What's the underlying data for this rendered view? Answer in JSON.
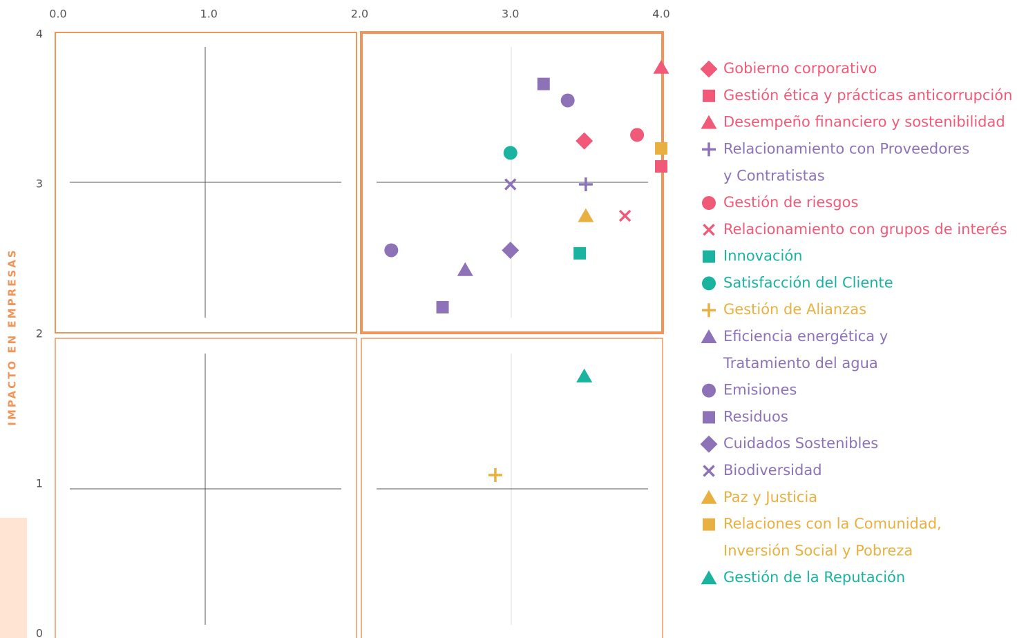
{
  "chart_data": {
    "type": "scatter",
    "ylabel": "IMPACTO EN EMPRESAS",
    "xlim": [
      0,
      4
    ],
    "ylim": [
      0,
      4
    ],
    "xticks": [
      {
        "value": 0,
        "label": "0.0"
      },
      {
        "value": 1,
        "label": "1.0"
      },
      {
        "value": 2,
        "label": "2.0"
      },
      {
        "value": 3,
        "label": "3.0"
      },
      {
        "value": 4,
        "label": "4.0"
      }
    ],
    "yticks": [
      0,
      1,
      2,
      3,
      4
    ],
    "series": [
      {
        "name": "Gobierno corporativo",
        "color": "#f05a78",
        "marker": "diamond",
        "x": [
          3.49
        ],
        "values": [
          3.29
        ]
      },
      {
        "name": "Gestión ética y prácticas anticorrupción",
        "color": "#f05a78",
        "marker": "square",
        "x": [
          4.0
        ],
        "values": [
          3.12
        ]
      },
      {
        "name": "Desempeño financiero y sostenibilidad",
        "color": "#f05a78",
        "marker": "triangle",
        "x": [
          4.0
        ],
        "values": [
          3.78
        ]
      },
      {
        "name": "Relacionamiento con Proveedores\ny Contratistas",
        "color": "#8e72b8",
        "marker": "plus",
        "x": [
          3.5
        ],
        "values": [
          3.0
        ]
      },
      {
        "name": "Gestión de riesgos",
        "color": "#f05a78",
        "marker": "circle",
        "x": [
          3.84
        ],
        "values": [
          3.33
        ]
      },
      {
        "name": "Relacionamiento con grupos de interés",
        "color": "#f05a78",
        "marker": "x",
        "x": [
          3.76
        ],
        "values": [
          2.79
        ]
      },
      {
        "name": "Innovación",
        "color": "#19b3a0",
        "marker": "square",
        "x": [
          3.46
        ],
        "values": [
          2.54
        ]
      },
      {
        "name": "Satisfacción del Cliente",
        "color": "#19b3a0",
        "marker": "circle",
        "x": [
          3.0
        ],
        "values": [
          3.21
        ]
      },
      {
        "name": "Gestión de Alianzas",
        "color": "#e8b040",
        "marker": "plus",
        "x": [
          2.9
        ],
        "values": [
          1.06
        ]
      },
      {
        "name": "Eficiencia energética y\nTratamiento del agua",
        "color": "#8e72b8",
        "marker": "triangle",
        "x": [
          2.7
        ],
        "values": [
          2.43
        ]
      },
      {
        "name": "Emisiones",
        "color": "#8e72b8",
        "marker": "circle",
        "x": [
          2.21,
          3.38
        ],
        "values": [
          2.56,
          3.56
        ]
      },
      {
        "name": "Residuos",
        "color": "#8e72b8",
        "marker": "square",
        "x": [
          3.22,
          2.55
        ],
        "values": [
          3.67,
          2.18
        ]
      },
      {
        "name": "Cuidados Sostenibles",
        "color": "#8e72b8",
        "marker": "diamond",
        "x": [
          3.0
        ],
        "values": [
          2.56
        ]
      },
      {
        "name": "Biodiversidad",
        "color": "#8e72b8",
        "marker": "x",
        "x": [
          3.0
        ],
        "values": [
          3.0
        ]
      },
      {
        "name": "Paz y Justicia",
        "color": "#e8b040",
        "marker": "triangle",
        "x": [
          3.5
        ],
        "values": [
          2.79
        ]
      },
      {
        "name": "Relaciones con la Comunidad,\nInversión Social y Pobreza",
        "color": "#e8b040",
        "marker": "square",
        "x": [
          4.0
        ],
        "values": [
          3.24
        ]
      },
      {
        "name": "Gestión de la Reputación",
        "color": "#19b3a0",
        "marker": "triangle",
        "x": [
          3.49
        ],
        "values": [
          1.72
        ]
      }
    ]
  }
}
